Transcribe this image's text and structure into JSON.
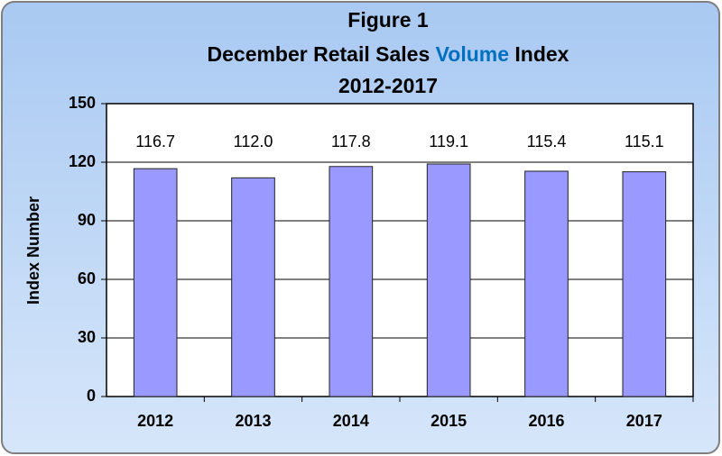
{
  "chart_data": {
    "type": "bar",
    "title": {
      "line1": "Figure 1",
      "line2": [
        "December Retail Sales",
        "Volume",
        "Index"
      ],
      "line3": "2012-2017",
      "highlight_color": "#0070c0"
    },
    "y_label": "Index Number",
    "categories": [
      "2012",
      "2013",
      "2014",
      "2015",
      "2016",
      "2017"
    ],
    "values": [
      116.7,
      112.0,
      117.8,
      119.1,
      115.4,
      115.1
    ],
    "value_labels": [
      "116.7",
      "112.0",
      "117.8",
      "119.1",
      "115.4",
      "115.1"
    ],
    "color": "#9999ff",
    "ylim": [
      0,
      150
    ],
    "yticks": [
      0,
      30,
      60,
      90,
      120,
      150
    ],
    "grid": true
  }
}
